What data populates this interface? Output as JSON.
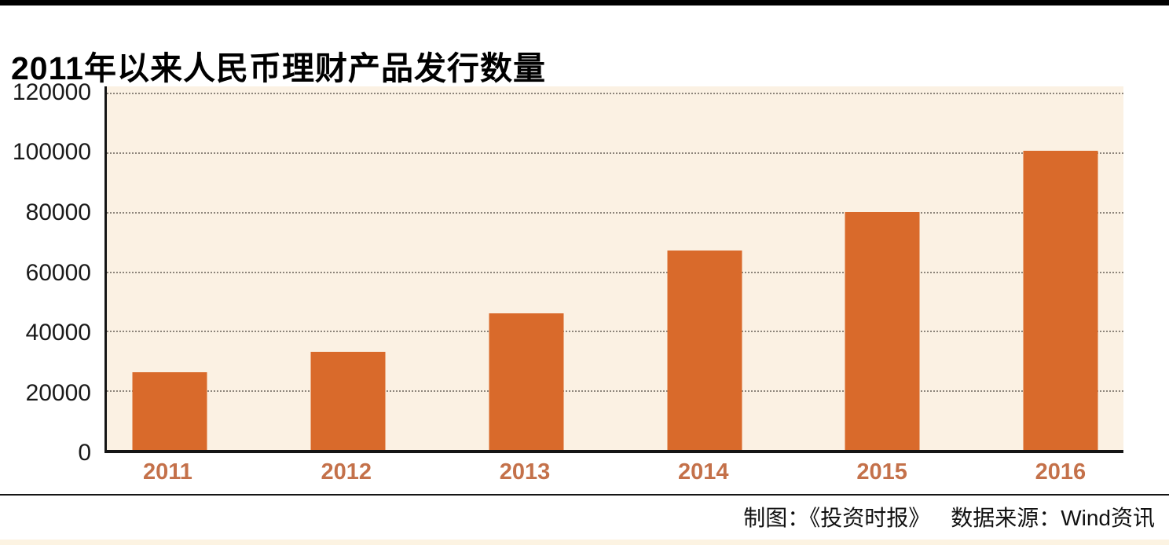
{
  "page": {
    "title": "2011年以来人民币理财产品发行数量",
    "footer_credit": "制图：《投资时报》",
    "footer_source": "数据来源：Wind资讯"
  },
  "chart_data": {
    "type": "bar",
    "title": "2011年以来人民币理财产品发行数量",
    "categories": [
      "2011",
      "2012",
      "2013",
      "2014",
      "2015",
      "2016"
    ],
    "values": [
      26000,
      33000,
      46000,
      67000,
      80000,
      100500
    ],
    "xlabel": "",
    "ylabel": "",
    "ylim": [
      0,
      120000
    ],
    "yticks": [
      0,
      20000,
      40000,
      60000,
      80000,
      100000,
      120000
    ],
    "grid": "horizontal-dotted",
    "legend_position": "none",
    "colors": {
      "bar": "#d96a2b",
      "plot_background": "#fbf1e3",
      "gridline": "#8d857b",
      "axis": "#151515",
      "tick_label": "#1a1a1a",
      "category_label": "#c4714a"
    }
  }
}
